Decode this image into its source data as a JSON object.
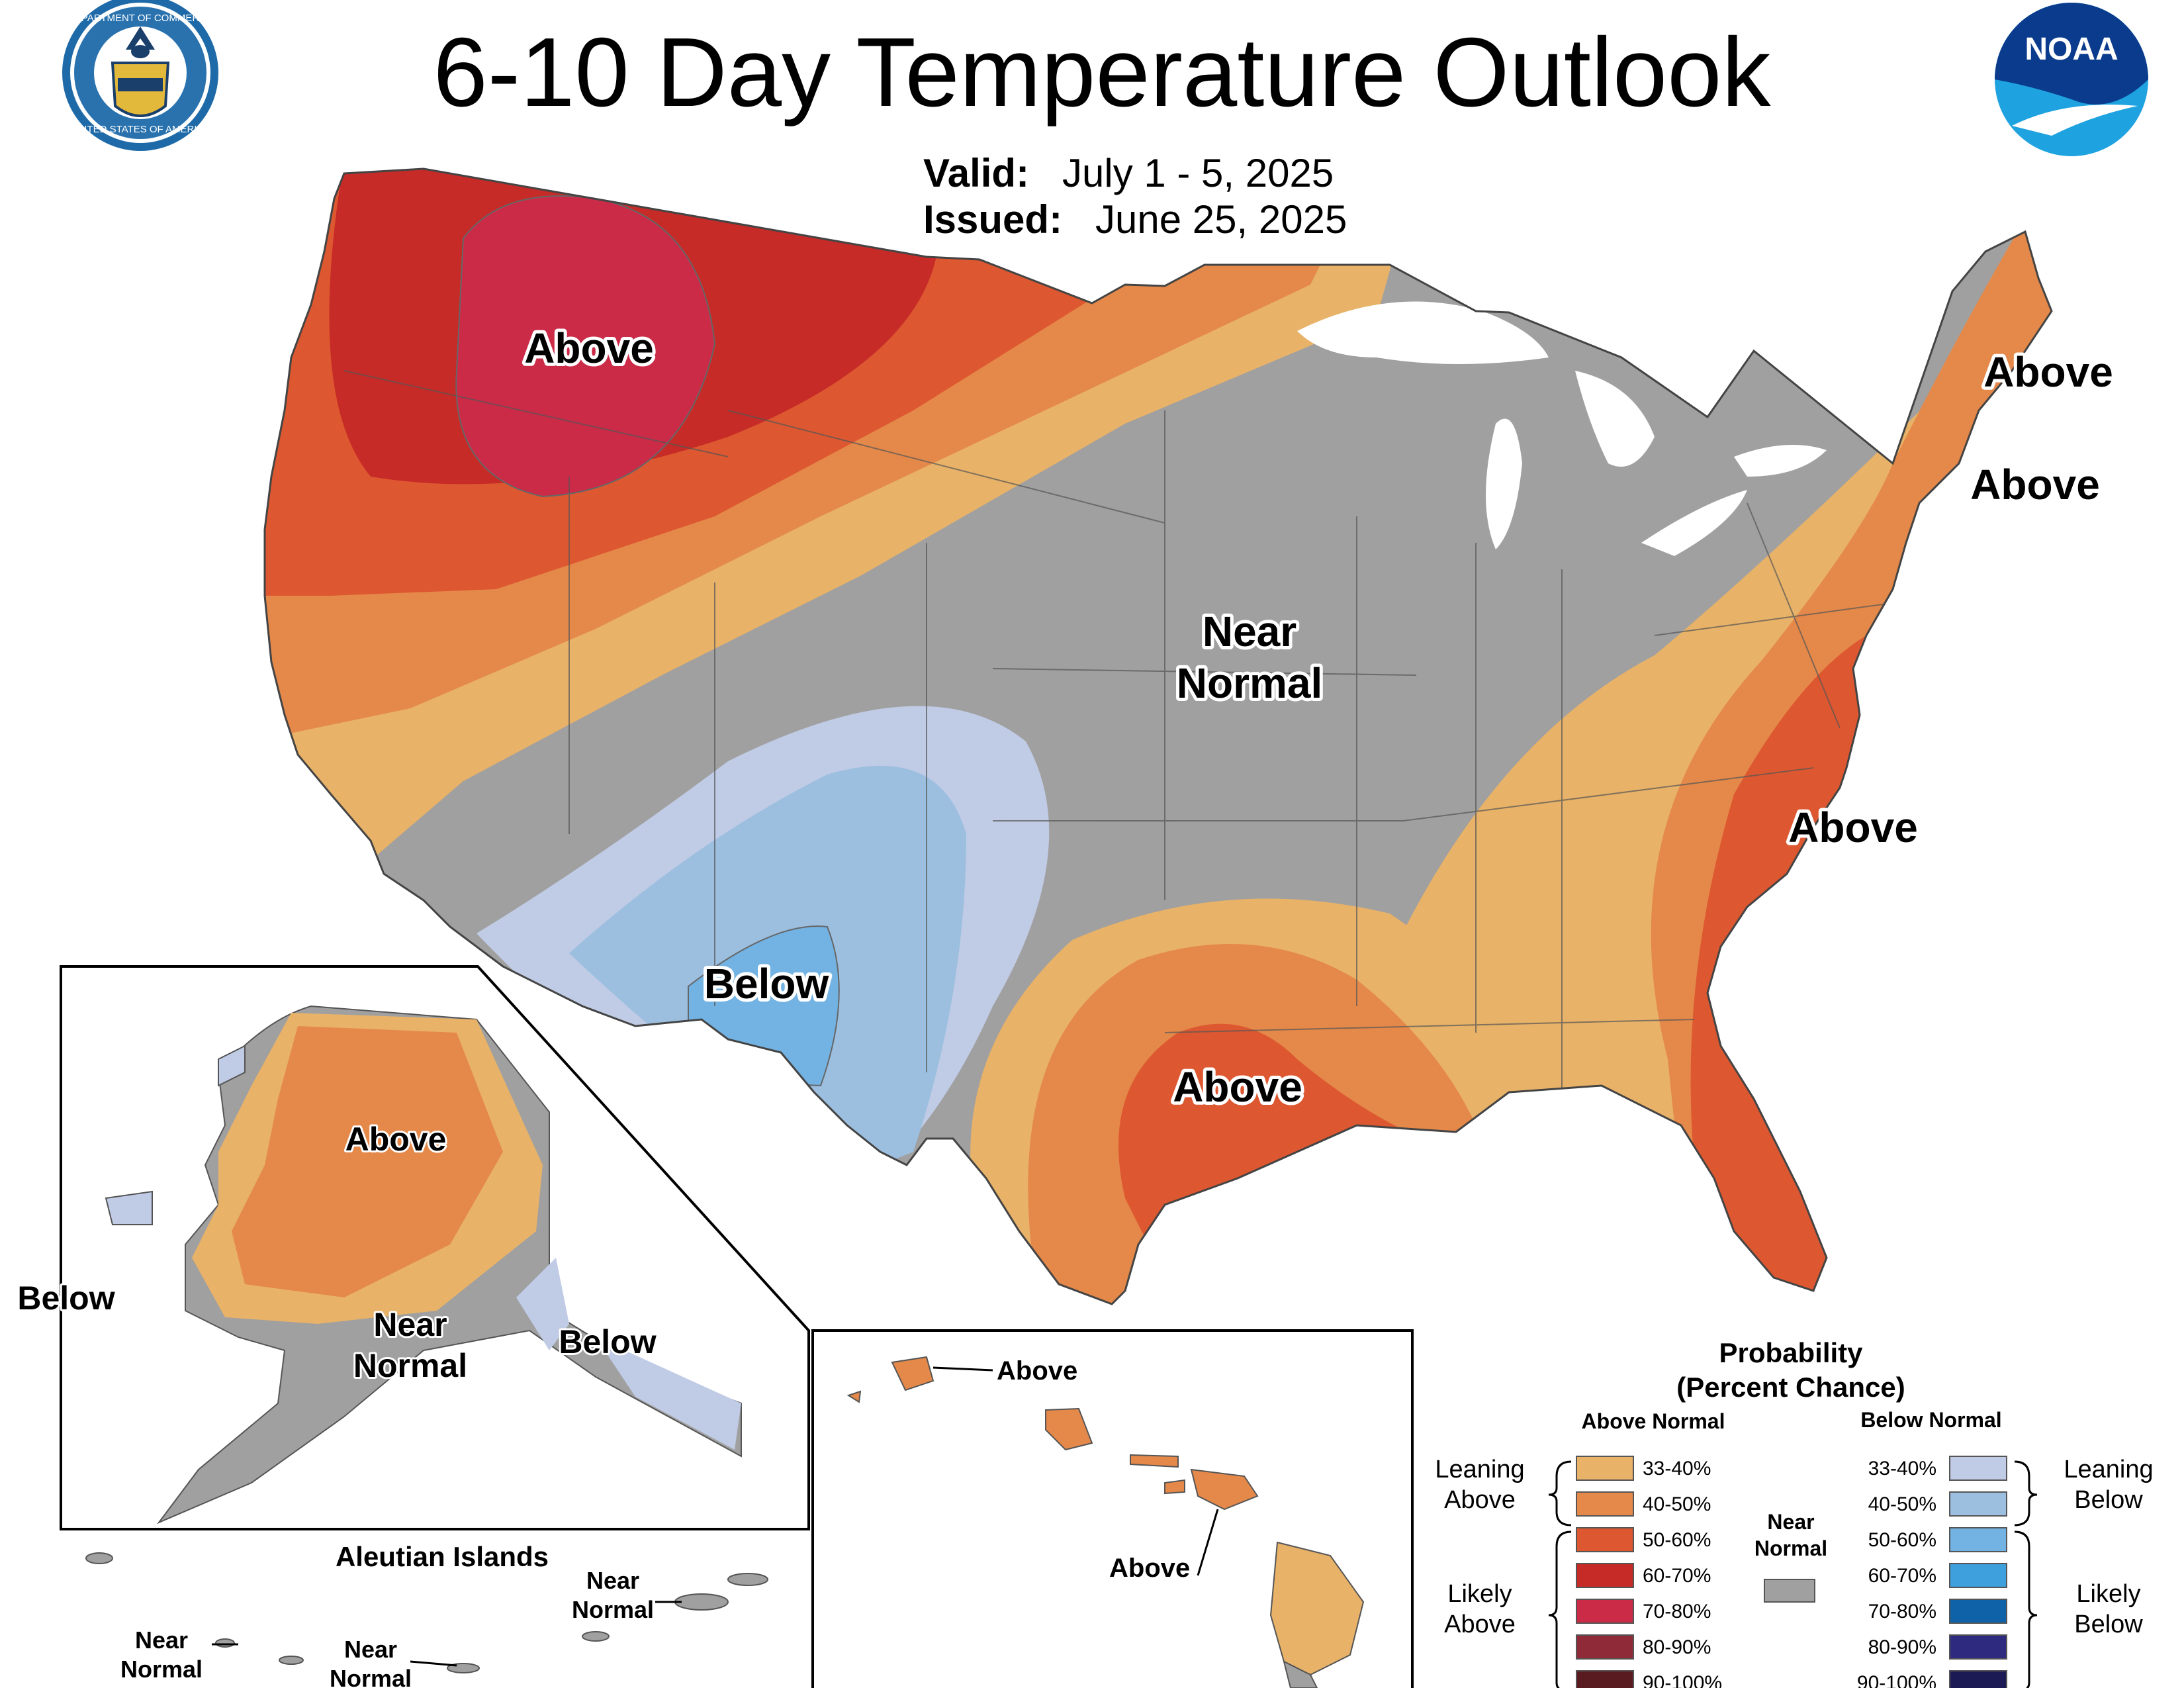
{
  "header": {
    "title": "6-10 Day Temperature Outlook",
    "valid_label": "Valid:",
    "valid_value": "July 1 - 5, 2025",
    "issued_label": "Issued:",
    "issued_value": "June 25, 2025"
  },
  "logos": {
    "commerce_seal_text_top": "DEPARTMENT OF COMMERCE",
    "commerce_seal_text_bottom": "UNITED STATES OF AMERICA",
    "noaa_text": "NOAA"
  },
  "map_labels": {
    "northwest": "Above",
    "northeast_1": "Above",
    "northeast_2": "Above",
    "carolinas": "Above",
    "texas": "Above",
    "southwest": "Below",
    "central_1": "Near",
    "central_2": "Normal"
  },
  "alaska": {
    "above": "Above",
    "near_1": "Near",
    "near_2": "Normal",
    "below_se": "Below",
    "below_w": "Below",
    "aleutian_title": "Aleutian Islands",
    "aleutian_near_a1": "Near",
    "aleutian_near_a2": "Normal",
    "aleutian_near_b1": "Near",
    "aleutian_near_b2": "Normal",
    "aleutian_near_c1": "Near",
    "aleutian_near_c2": "Normal"
  },
  "hawaii": {
    "above_1": "Above",
    "above_2": "Above"
  },
  "legend": {
    "title_1": "Probability",
    "title_2": "(Percent Chance)",
    "above_header": "Above Normal",
    "below_header": "Below Normal",
    "leaning_above_1": "Leaning",
    "leaning_above_2": "Above",
    "likely_above_1": "Likely",
    "likely_above_2": "Above",
    "leaning_below_1": "Leaning",
    "leaning_below_2": "Below",
    "likely_below_1": "Likely",
    "likely_below_2": "Below",
    "near_1": "Near",
    "near_2": "Normal",
    "near_color": "#a0a0a0",
    "above_bins": [
      {
        "range": "33-40%",
        "color": "#e8b268"
      },
      {
        "range": "40-50%",
        "color": "#e5894a"
      },
      {
        "range": "50-60%",
        "color": "#dd5830"
      },
      {
        "range": "60-70%",
        "color": "#c72b27"
      },
      {
        "range": "70-80%",
        "color": "#cc2b48"
      },
      {
        "range": "80-90%",
        "color": "#8f2a38"
      },
      {
        "range": "90-100%",
        "color": "#5a1b20"
      }
    ],
    "below_bins": [
      {
        "range": "33-40%",
        "color": "#c0cbe5"
      },
      {
        "range": "40-50%",
        "color": "#9cbfe0"
      },
      {
        "range": "50-60%",
        "color": "#72b3e3"
      },
      {
        "range": "60-70%",
        "color": "#3ea0dd"
      },
      {
        "range": "70-80%",
        "color": "#0f62a8"
      },
      {
        "range": "80-90%",
        "color": "#2d2a80"
      },
      {
        "range": "90-100%",
        "color": "#1c1a55"
      }
    ]
  }
}
